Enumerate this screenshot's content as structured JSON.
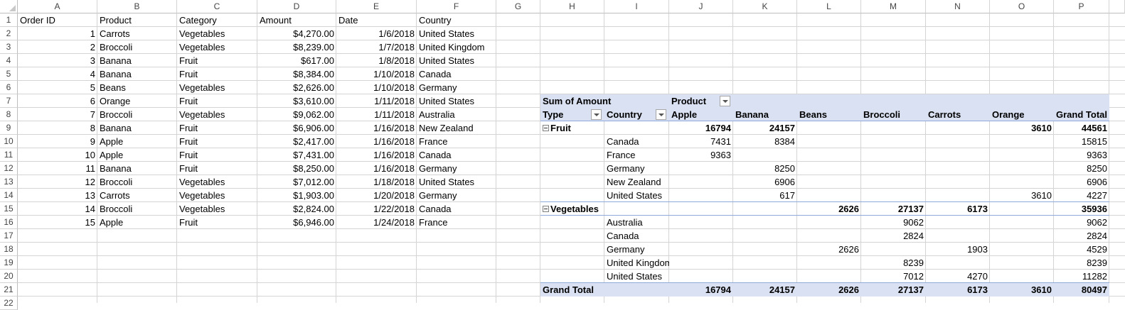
{
  "columns": [
    "A",
    "B",
    "C",
    "D",
    "E",
    "F",
    "G",
    "H",
    "I",
    "J",
    "K",
    "L",
    "M",
    "N",
    "O",
    "P"
  ],
  "rows": [
    "1",
    "2",
    "3",
    "4",
    "5",
    "6",
    "7",
    "8",
    "9",
    "10",
    "11",
    "12",
    "13",
    "14",
    "15",
    "16",
    "17",
    "18",
    "19",
    "20",
    "21",
    "22"
  ],
  "table": {
    "headers": [
      "Order ID",
      "Product",
      "Category",
      "Amount",
      "Date",
      "Country"
    ],
    "records": [
      [
        "1",
        "Carrots",
        "Vegetables",
        "$4,270.00",
        "1/6/2018",
        "United States"
      ],
      [
        "2",
        "Broccoli",
        "Vegetables",
        "$8,239.00",
        "1/7/2018",
        "United Kingdom"
      ],
      [
        "3",
        "Banana",
        "Fruit",
        "$617.00",
        "1/8/2018",
        "United States"
      ],
      [
        "4",
        "Banana",
        "Fruit",
        "$8,384.00",
        "1/10/2018",
        "Canada"
      ],
      [
        "5",
        "Beans",
        "Vegetables",
        "$2,626.00",
        "1/10/2018",
        "Germany"
      ],
      [
        "6",
        "Orange",
        "Fruit",
        "$3,610.00",
        "1/11/2018",
        "United States"
      ],
      [
        "7",
        "Broccoli",
        "Vegetables",
        "$9,062.00",
        "1/11/2018",
        "Australia"
      ],
      [
        "8",
        "Banana",
        "Fruit",
        "$6,906.00",
        "1/16/2018",
        "New Zealand"
      ],
      [
        "9",
        "Apple",
        "Fruit",
        "$2,417.00",
        "1/16/2018",
        "France"
      ],
      [
        "10",
        "Apple",
        "Fruit",
        "$7,431.00",
        "1/16/2018",
        "Canada"
      ],
      [
        "11",
        "Banana",
        "Fruit",
        "$8,250.00",
        "1/16/2018",
        "Germany"
      ],
      [
        "12",
        "Broccoli",
        "Vegetables",
        "$7,012.00",
        "1/18/2018",
        "United States"
      ],
      [
        "13",
        "Carrots",
        "Vegetables",
        "$1,903.00",
        "1/20/2018",
        "Germany"
      ],
      [
        "14",
        "Broccoli",
        "Vegetables",
        "$2,824.00",
        "1/22/2018",
        "Canada"
      ],
      [
        "15",
        "Apple",
        "Fruit",
        "$6,946.00",
        "1/24/2018",
        "France"
      ]
    ]
  },
  "pivot": {
    "values_label": "Sum of Amount",
    "column_field": "Product",
    "row_fields": [
      "Type",
      "Country"
    ],
    "products": [
      "Apple",
      "Banana",
      "Beans",
      "Broccoli",
      "Carrots",
      "Orange",
      "Grand Total"
    ],
    "rows": [
      {
        "kind": "group",
        "label": "Fruit",
        "vals": [
          "16794",
          "24157",
          "",
          "",
          "",
          "3610",
          "44561"
        ]
      },
      {
        "kind": "item",
        "label": "Canada",
        "vals": [
          "7431",
          "8384",
          "",
          "",
          "",
          "",
          "15815"
        ]
      },
      {
        "kind": "item",
        "label": "France",
        "vals": [
          "9363",
          "",
          "",
          "",
          "",
          "",
          "9363"
        ]
      },
      {
        "kind": "item",
        "label": "Germany",
        "vals": [
          "",
          "8250",
          "",
          "",
          "",
          "",
          "8250"
        ]
      },
      {
        "kind": "item",
        "label": "New Zealand",
        "vals": [
          "",
          "6906",
          "",
          "",
          "",
          "",
          "6906"
        ]
      },
      {
        "kind": "item",
        "label": "United States",
        "vals": [
          "",
          "617",
          "",
          "",
          "",
          "3610",
          "4227"
        ]
      },
      {
        "kind": "group",
        "label": "Vegetables",
        "vals": [
          "",
          "",
          "2626",
          "27137",
          "6173",
          "",
          "35936"
        ]
      },
      {
        "kind": "item",
        "label": "Australia",
        "vals": [
          "",
          "",
          "",
          "9062",
          "",
          "",
          "9062"
        ]
      },
      {
        "kind": "item",
        "label": "Canada",
        "vals": [
          "",
          "",
          "",
          "2824",
          "",
          "",
          "2824"
        ]
      },
      {
        "kind": "item",
        "label": "Germany",
        "vals": [
          "",
          "",
          "2626",
          "",
          "1903",
          "",
          "4529"
        ]
      },
      {
        "kind": "item",
        "label": "United Kingdom",
        "vals": [
          "",
          "",
          "",
          "8239",
          "",
          "",
          "8239"
        ]
      },
      {
        "kind": "item",
        "label": "United States",
        "vals": [
          "",
          "",
          "",
          "7012",
          "4270",
          "",
          "11282"
        ]
      }
    ],
    "grand_total_label": "Grand Total",
    "grand_total_vals": [
      "16794",
      "24157",
      "2626",
      "27137",
      "6173",
      "3610",
      "80497"
    ]
  }
}
